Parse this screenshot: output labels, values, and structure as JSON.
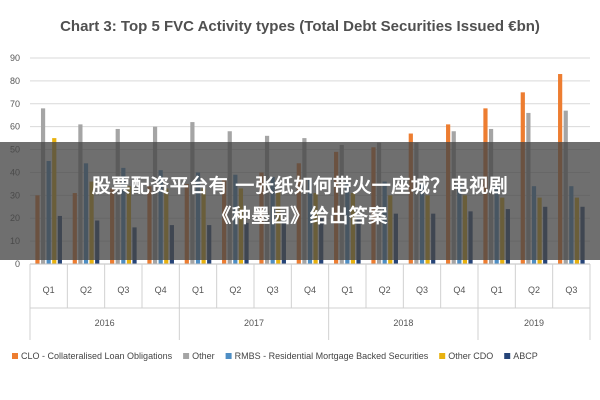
{
  "chart_data": {
    "type": "bar",
    "title": "Chart 3: Top 5 FVC Activity types (Total Debt Securities Issued €bn)",
    "ylim": [
      0,
      90
    ],
    "yticks": [
      0,
      10,
      20,
      30,
      40,
      50,
      60,
      70,
      80,
      90
    ],
    "grid": true,
    "legend_position": "bottom",
    "categories": [
      "Q1",
      "Q2",
      "Q3",
      "Q4",
      "Q1",
      "Q2",
      "Q3",
      "Q4",
      "Q1",
      "Q2",
      "Q3",
      "Q4",
      "Q1",
      "Q2",
      "Q3"
    ],
    "groups": [
      {
        "label": "2016",
        "count": 4
      },
      {
        "label": "2017",
        "count": 4
      },
      {
        "label": "2018",
        "count": 4
      },
      {
        "label": "2019",
        "count": 3
      }
    ],
    "series": [
      {
        "name": "CLO - Collateralised Loan Obligations",
        "color": "#ed7d31",
        "values": [
          30,
          31,
          33,
          34,
          35,
          37,
          40,
          44,
          49,
          51,
          57,
          61,
          68,
          75,
          83
        ]
      },
      {
        "name": "Other",
        "color": "#a5a5a5",
        "values": [
          68,
          61,
          59,
          60,
          62,
          58,
          56,
          55,
          52,
          53,
          53,
          58,
          59,
          66,
          67
        ]
      },
      {
        "name": "RMBS - Residential Mortgage Backed Securities",
        "color": "#4e8ec4",
        "values": [
          45,
          44,
          42,
          41,
          40,
          39,
          38,
          37,
          36,
          36,
          35,
          35,
          34,
          34,
          34
        ]
      },
      {
        "name": "Other CDO",
        "color": "#e8b10e",
        "values": [
          55,
          36,
          34,
          33,
          33,
          33,
          32,
          31,
          31,
          30,
          30,
          30,
          29,
          29,
          29
        ]
      },
      {
        "name": "ABCP",
        "color": "#264478",
        "values": [
          21,
          19,
          16,
          17,
          17,
          18,
          19,
          20,
          21,
          22,
          22,
          23,
          24,
          25,
          25
        ]
      }
    ]
  },
  "overlay": {
    "line1": "股票配资平台有 一张纸如何带火一座城？电视剧",
    "line2": "《种墨园》给出答案"
  }
}
